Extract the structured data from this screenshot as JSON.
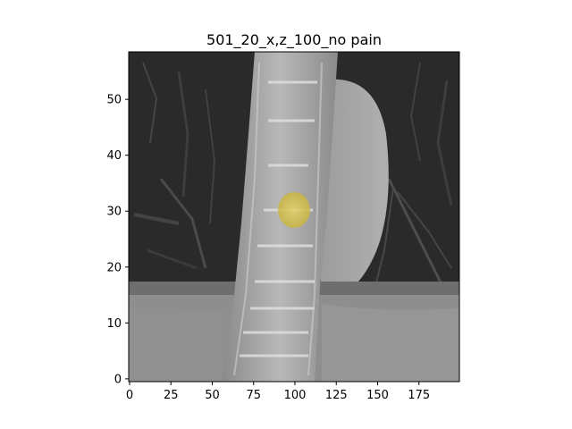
{
  "figure": {
    "title": "501_20_x,z_100_no pain"
  },
  "image_panel": {
    "content": "coronal CT slice of spine with segmentation overlay",
    "overlay_color": "#d8c34a",
    "overlay_center_data": [
      100,
      30
    ],
    "overlay_radius_data": 9
  },
  "axes": {
    "x_range": [
      0,
      199
    ],
    "y_range": [
      0,
      58
    ],
    "x_ticks": [
      {
        "value": 0,
        "label": "0"
      },
      {
        "value": 25,
        "label": "25"
      },
      {
        "value": 50,
        "label": "50"
      },
      {
        "value": 75,
        "label": "75"
      },
      {
        "value": 100,
        "label": "100"
      },
      {
        "value": 125,
        "label": "125"
      },
      {
        "value": 150,
        "label": "150"
      },
      {
        "value": 175,
        "label": "175"
      }
    ],
    "y_ticks": [
      {
        "value": 0,
        "label": "0"
      },
      {
        "value": 10,
        "label": "10"
      },
      {
        "value": 20,
        "label": "20"
      },
      {
        "value": 30,
        "label": "30"
      },
      {
        "value": 40,
        "label": "40"
      },
      {
        "value": 50,
        "label": "50"
      }
    ]
  }
}
